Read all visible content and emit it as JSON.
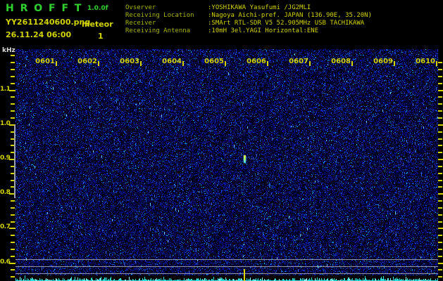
{
  "header": {
    "app_title": "H R O F F T",
    "version": "1.0.0f",
    "filename": "YY2611240600.png",
    "mode": "meteor",
    "datetime": "26.11.24 06:00",
    "meteor_count": "1",
    "station": [
      {
        "label": "Ovserver",
        "value": ":YOSHIKAWA Yasufumi /JG2MLI"
      },
      {
        "label": "Receiving Location",
        "value": ":Nagoya Aichi-pref. JAPAN (136.90E, 35.20N)"
      },
      {
        "label": "Receiver",
        "value": ":SMArt RTL-SDR V5 52.905MHz USB TACHIKAWA"
      },
      {
        "label": "Receiving Antenna",
        "value": ":10mH 3el.YAGI Horizontal:ENE"
      }
    ]
  },
  "chart_data": {
    "type": "heatmap",
    "description": "10-minute radio meteor echo spectrogram; mostly background noise with one faint meteor echo",
    "ylabel": "kHz",
    "y_ticks": [
      "1.1",
      "1.0",
      "0.9",
      "0.8",
      "0.7",
      "0.6"
    ],
    "y_range_khz": [
      0.55,
      1.2
    ],
    "x_ticks": [
      "0601",
      "0602",
      "0603",
      "0604",
      "0605",
      "0606",
      "0607",
      "0608",
      "0609",
      "0610"
    ],
    "reference_lines_khz": [
      0.61,
      0.59,
      0.57
    ],
    "events": [
      {
        "type": "meteor-echo",
        "time_label": "0605",
        "time_min_offset": 5.47,
        "freq_khz": 0.9
      }
    ],
    "echo_count": 1,
    "bottom_strip": "signal-level",
    "legend_position": "none",
    "grid": "off"
  },
  "colors": {
    "accent_green": "#2fd32f",
    "label_olive": "#a8b400",
    "accent_yellow": "#d2d200",
    "noise_blue": "#2030c0",
    "signal_cyan": "#30e0e0",
    "grid_gray": "#b4b8bc"
  }
}
